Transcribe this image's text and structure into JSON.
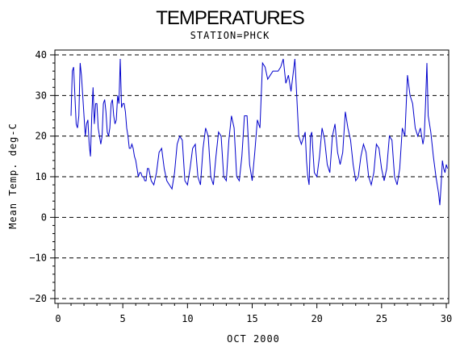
{
  "chart_data": {
    "type": "line",
    "title": "TEMPERATURES",
    "subtitle": "STATION=PHCK",
    "xlabel": "OCT 2000",
    "ylabel": "Mean Temp. deg-C",
    "xlim": [
      0,
      30
    ],
    "ylim": [
      -20,
      40
    ],
    "xticks": [
      0,
      5,
      10,
      15,
      20,
      25,
      30
    ],
    "yticks": [
      -20,
      -10,
      0,
      10,
      20,
      30,
      40
    ],
    "ref_lines": [
      -20,
      -10,
      0,
      10,
      20,
      30,
      40
    ],
    "grid": "dashed horizontal lines at major y ticks",
    "colors": {
      "series": "#0000cc",
      "axis": "#000000",
      "grid": "#000000"
    },
    "series": [
      {
        "x": [
          1.0,
          1.1,
          1.2,
          1.3,
          1.4,
          1.5,
          1.6,
          1.7,
          1.8,
          1.9,
          2.0,
          2.1,
          2.2,
          2.3,
          2.4,
          2.5,
          2.6,
          2.7,
          2.8,
          2.9,
          3.0,
          3.1,
          3.2,
          3.3,
          3.4,
          3.5,
          3.6,
          3.7,
          3.8,
          3.9,
          4.0,
          4.1,
          4.2,
          4.3,
          4.4,
          4.5,
          4.6,
          4.7,
          4.8,
          4.9,
          5.0,
          5.1,
          5.2,
          5.3,
          5.4,
          5.5,
          5.6,
          5.7,
          5.8,
          5.9,
          6.0,
          6.1,
          6.2,
          6.3,
          6.4,
          6.5,
          6.6,
          6.7,
          6.8,
          6.9,
          7.0,
          7.2,
          7.4,
          7.6,
          7.8,
          8.0,
          8.2,
          8.4,
          8.6,
          8.8,
          9.0,
          9.2,
          9.4,
          9.6,
          9.8,
          10.0,
          10.2,
          10.4,
          10.6,
          10.8,
          11.0,
          11.2,
          11.4,
          11.6,
          11.8,
          12.0,
          12.2,
          12.4,
          12.6,
          12.8,
          13.0,
          13.2,
          13.4,
          13.6,
          13.8,
          14.0,
          14.2,
          14.4,
          14.6,
          14.8,
          15.0,
          15.2,
          15.4,
          15.6,
          15.8,
          16.0,
          16.2,
          16.4,
          16.6,
          16.8,
          17.0,
          17.2,
          17.4,
          17.6,
          17.8,
          18.0,
          18.3,
          18.6,
          18.8,
          19.0,
          19.1,
          19.2,
          19.3,
          19.4,
          19.5,
          19.6,
          19.7,
          19.8,
          20.0,
          20.2,
          20.4,
          20.6,
          20.8,
          21.0,
          21.2,
          21.4,
          21.6,
          21.8,
          22.0,
          22.2,
          22.4,
          22.6,
          22.8,
          23.0,
          23.2,
          23.4,
          23.6,
          23.8,
          24.0,
          24.2,
          24.4,
          24.6,
          24.8,
          25.0,
          25.2,
          25.4,
          25.6,
          25.8,
          26.0,
          26.2,
          26.4,
          26.6,
          26.8,
          27.0,
          27.2,
          27.4,
          27.6,
          27.8,
          28.0,
          28.2,
          28.3,
          28.4,
          28.5,
          28.6,
          28.8,
          29.0,
          29.2,
          29.4,
          29.5,
          29.6,
          29.7,
          29.8,
          29.9,
          30.0,
          30.1
        ],
        "y": [
          25,
          36,
          37,
          30,
          23,
          22,
          25,
          38,
          35,
          30,
          25,
          20,
          23,
          24,
          18,
          15,
          25,
          32,
          23,
          28,
          28,
          22,
          20,
          18,
          20,
          28,
          29,
          26,
          21,
          20,
          22,
          28,
          29,
          25,
          23,
          24,
          30,
          28,
          39,
          27,
          28,
          28,
          26,
          22,
          20,
          17,
          17,
          18,
          17,
          15,
          14,
          12,
          10,
          11,
          11,
          10,
          10,
          9,
          9,
          12,
          12,
          9,
          8,
          11,
          16,
          17,
          12,
          9,
          8,
          7,
          11,
          18,
          20,
          19,
          9,
          8,
          12,
          17,
          18,
          10,
          8,
          17,
          22,
          20,
          10,
          8,
          15,
          21,
          20,
          10,
          9,
          19,
          25,
          22,
          10,
          9,
          15,
          25,
          25,
          13,
          9,
          16,
          24,
          22,
          38,
          37,
          34,
          35,
          36,
          36,
          36,
          37,
          39,
          33,
          35,
          31,
          39,
          20,
          18,
          20,
          21,
          14,
          10,
          8,
          20,
          21,
          16,
          11,
          10,
          15,
          22,
          19,
          13,
          11,
          20,
          23,
          16,
          13,
          16,
          26,
          22,
          19,
          13,
          9,
          10,
          15,
          18,
          16,
          10,
          8,
          11,
          18,
          17,
          12,
          9,
          12,
          20,
          19,
          10,
          8,
          12,
          22,
          20,
          35,
          30,
          28,
          22,
          20,
          22,
          18,
          20,
          28,
          38,
          25,
          21,
          15,
          10,
          6,
          3,
          8,
          14,
          12,
          11,
          13,
          12
        ]
      }
    ]
  }
}
